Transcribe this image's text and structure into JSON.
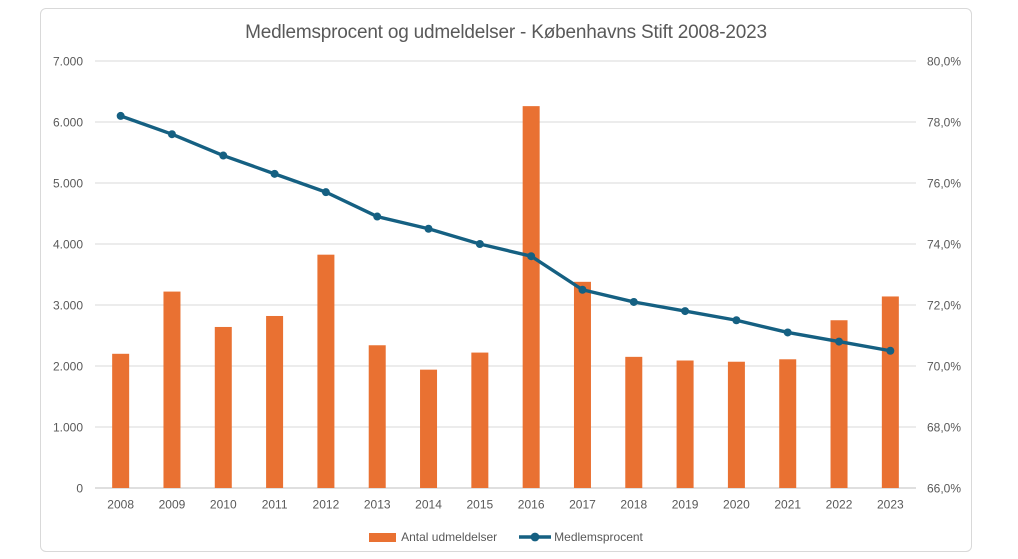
{
  "chart_data": {
    "type": "bar+line",
    "title": "Medlemsprocent og udmeldelser - Københavns Stift 2008-2023",
    "categories": [
      "2008",
      "2009",
      "2010",
      "2011",
      "2012",
      "2013",
      "2014",
      "2015",
      "2016",
      "2017",
      "2018",
      "2019",
      "2020",
      "2021",
      "2022",
      "2023"
    ],
    "series": [
      {
        "name": "Antal udmeldelser",
        "type": "bar",
        "axis": "left",
        "color": "#E97132",
        "values": [
          2200,
          3220,
          2640,
          2820,
          3825,
          2340,
          1940,
          2220,
          6260,
          3380,
          2150,
          2090,
          2070,
          2110,
          2750,
          3140
        ]
      },
      {
        "name": "Medlemsprocent",
        "type": "line",
        "axis": "right",
        "color": "#156082",
        "values": [
          78.2,
          77.6,
          76.9,
          76.3,
          75.7,
          74.9,
          74.5,
          74.0,
          73.6,
          72.5,
          72.1,
          71.8,
          71.5,
          71.1,
          70.8,
          70.5
        ]
      }
    ],
    "left_axis": {
      "min": 0,
      "max": 7000,
      "step": 1000,
      "tick_labels": [
        "0",
        "1.000",
        "2.000",
        "3.000",
        "4.000",
        "5.000",
        "6.000",
        "7.000"
      ]
    },
    "right_axis": {
      "min": 66,
      "max": 80,
      "step": 2,
      "tick_labels": [
        "66,0%",
        "68,0%",
        "70,0%",
        "72,0%",
        "74,0%",
        "76,0%",
        "78,0%",
        "80,0%"
      ]
    },
    "grid": true,
    "legend_position": "bottom"
  },
  "colors": {
    "bar": "#E97132",
    "line": "#156082",
    "grid": "#D9D9D9",
    "axis_line": "#BFBFBF",
    "text": "#595959",
    "frame_border": "#D9D9D9",
    "background": "#FFFFFF"
  }
}
